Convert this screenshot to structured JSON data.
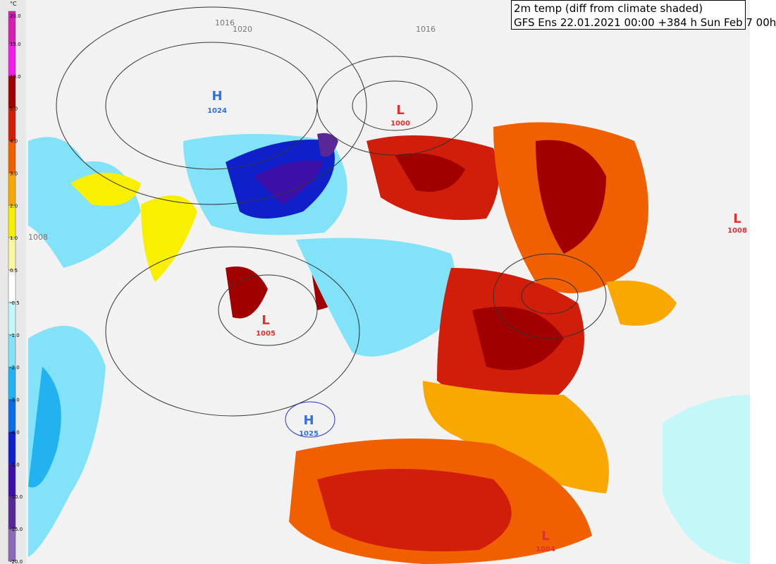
{
  "header": {
    "title": "2m temp (diff from climate shaded)",
    "subtitle": "GFS Ens 22.01.2021 00:00 +384 h Sun Feb 7 00h"
  },
  "colorbar": {
    "unit": "°C",
    "ticks": [
      "20.0",
      "15.0",
      "10.0",
      "5.0",
      "4.0",
      "3.0",
      "2.0",
      "1.0",
      "0.5",
      "-0.5",
      "-1.0",
      "-2.0",
      "-3.0",
      "-4.0",
      "-5.0",
      "-10.0",
      "-15.0",
      "-20.0"
    ],
    "colors": [
      "#d21fb4",
      "#f01ee6",
      "#a00000",
      "#d01e0a",
      "#f06000",
      "#f8a800",
      "#f8f000",
      "#f8f8a0",
      "#ffffff",
      "#c4f8f8",
      "#82e2f8",
      "#22b2f0",
      "#0a6ee0",
      "#1020c8",
      "#3c10a8",
      "#5a2896",
      "#8a6ab4"
    ]
  },
  "pressure_centers": [
    {
      "kind": "H",
      "value": "1024"
    },
    {
      "kind": "L",
      "value": "1000"
    },
    {
      "kind": "L",
      "value": "1005"
    },
    {
      "kind": "H",
      "value": "1025"
    },
    {
      "kind": "L",
      "value": "1008"
    },
    {
      "kind": "L",
      "value": "1004"
    }
  ],
  "isobar_labels": [
    "1016",
    "1020",
    "1016",
    "1008"
  ]
}
